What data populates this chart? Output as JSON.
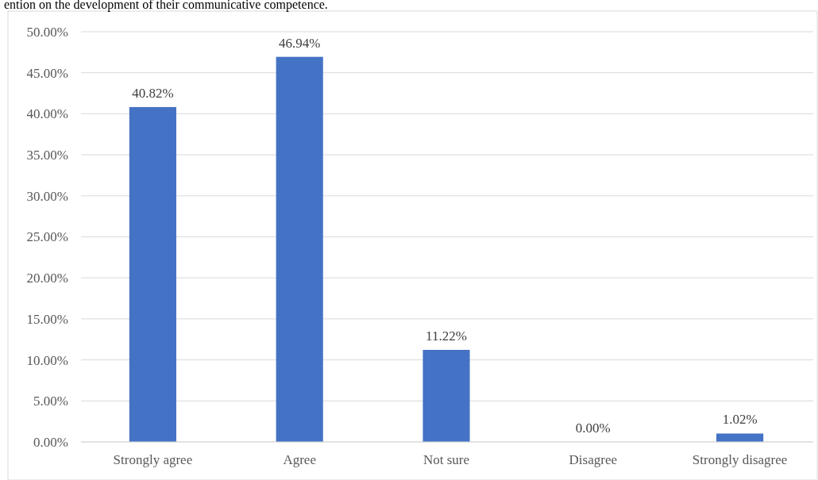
{
  "chart_data": {
    "type": "bar",
    "annotations": [
      "ention on the development of their communicative competence."
    ],
    "categories": [
      "Strongly agree",
      "Agree",
      "Not sure",
      "Disagree",
      "Strongly disagree"
    ],
    "values": [
      40.82,
      46.94,
      11.22,
      0,
      1.02
    ],
    "value_labels": [
      "40.82%",
      "46.94%",
      "11.22%",
      "0.00%",
      "1.02%"
    ],
    "color": "#4472c4",
    "ylim": [
      0,
      50
    ],
    "yticks": [
      {
        "value": 0,
        "label": "0.00%"
      },
      {
        "value": 5,
        "label": "5.00%"
      },
      {
        "value": 10,
        "label": "10.00%"
      },
      {
        "value": 15,
        "label": "15.00%"
      },
      {
        "value": 20,
        "label": "20.00%"
      },
      {
        "value": 25,
        "label": "25.00%"
      },
      {
        "value": 30,
        "label": "30.00%"
      },
      {
        "value": 35,
        "label": "35.00%"
      },
      {
        "value": 40,
        "label": "40.00%"
      },
      {
        "value": 45,
        "label": "45.00%"
      },
      {
        "value": 50,
        "label": "50.00%"
      }
    ],
    "grid": "y"
  }
}
